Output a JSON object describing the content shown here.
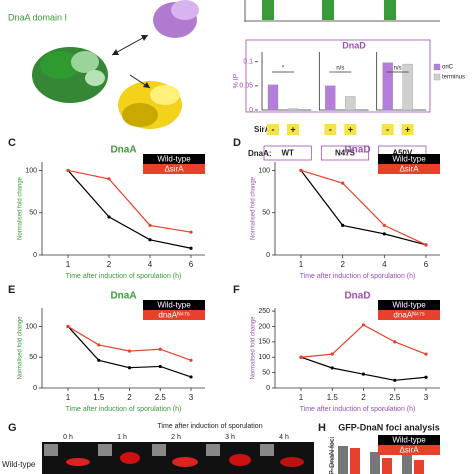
{
  "figure": {
    "structure_label": "DnaA domain I",
    "panels": [
      "C",
      "D",
      "E",
      "F",
      "G",
      "H"
    ],
    "microscopy": {
      "title": "Time after induction of sporulation",
      "times": [
        "0 h",
        "1 h",
        "2 h",
        "3 h",
        "4 h"
      ],
      "row": "Wild-type"
    }
  },
  "chart_data": [
    {
      "type": "bar",
      "title": "DnaD",
      "title_color": "#9b4fb0",
      "ylabel": "% IP",
      "categories": [
        "WT",
        "N47S",
        "A50V"
      ],
      "group_label": "DnaA:",
      "sira_label": "SirA",
      "sira_states": [
        "-",
        "+"
      ],
      "annotations": [
        "*",
        "n/s",
        "n/s"
      ],
      "series": [
        {
          "name": "oriC",
          "color": "#b57edc",
          "values": [
            0.052,
            0.05,
            0.098
          ]
        },
        {
          "name": "terminus",
          "color": "#d0d0d0",
          "values": [
            0.003,
            0.028,
            0.095
          ]
        }
      ],
      "ylim": [
        0,
        0.12
      ],
      "yticks": [
        0,
        0.05,
        0.1
      ],
      "legend": "right"
    },
    {
      "type": "line",
      "title": "DnaA",
      "title_color": "#3a9a3a",
      "ylabel": "Normalised fold change",
      "xlabel": "Time after induction of sporulation (h)",
      "categories": [
        "1",
        "2",
        "4",
        "6"
      ],
      "series": [
        {
          "name": "Wild-type",
          "color": "#000000",
          "values": [
            100,
            45,
            18,
            8
          ]
        },
        {
          "name": "ΔsirA",
          "color": "#e8402a",
          "values": [
            100,
            90,
            35,
            27
          ]
        }
      ],
      "ylim": [
        0,
        110
      ],
      "yticks": [
        0,
        50,
        100
      ],
      "legend": "upper right"
    },
    {
      "type": "line",
      "title": "DnaD",
      "title_color": "#9b4fb0",
      "ylabel": "Normalised fold change",
      "xlabel": "Time after induction of sporulation (h)",
      "categories": [
        "1",
        "2",
        "4",
        "6"
      ],
      "series": [
        {
          "name": "Wild-type",
          "color": "#000000",
          "values": [
            100,
            35,
            25,
            12
          ]
        },
        {
          "name": "ΔsirA",
          "color": "#e8402a",
          "values": [
            100,
            85,
            35,
            12
          ]
        }
      ],
      "ylim": [
        0,
        110
      ],
      "yticks": [
        0,
        50,
        100
      ],
      "legend": "upper right"
    },
    {
      "type": "line",
      "title": "DnaA",
      "title_color": "#3a9a3a",
      "ylabel": "Normalised fold change",
      "xlabel": "Time after induction of sporulation (h)",
      "categories": [
        "1",
        "1.5",
        "2",
        "2.5",
        "3"
      ],
      "series": [
        {
          "name": "Wild-type",
          "color": "#000000",
          "values": [
            100,
            45,
            33,
            35,
            18
          ]
        },
        {
          "name": "dnaAᴺ⁴⁷ˢ",
          "color": "#e8402a",
          "values": [
            100,
            70,
            60,
            63,
            45
          ]
        }
      ],
      "ylim": [
        0,
        130
      ],
      "yticks": [
        0,
        50,
        100
      ],
      "legend": "upper right"
    },
    {
      "type": "line",
      "title": "DnaD",
      "title_color": "#9b4fb0",
      "ylabel": "Normalised fold change",
      "xlabel": "Time after induction of sporulation (h)",
      "categories": [
        "1",
        "1.5",
        "2",
        "2.5",
        "3"
      ],
      "series": [
        {
          "name": "Wild-type",
          "color": "#000000",
          "values": [
            100,
            65,
            45,
            25,
            35
          ]
        },
        {
          "name": "dnaAᴺ⁴⁷ˢ",
          "color": "#e8402a",
          "values": [
            100,
            110,
            205,
            150,
            110
          ]
        }
      ],
      "ylim": [
        0,
        260
      ],
      "yticks": [
        0,
        50,
        100,
        150,
        200,
        250
      ],
      "legend": "upper right"
    },
    {
      "type": "legend-only",
      "title": "GFP-DnaN foci analysis",
      "ylabel": "P-DnaN foci",
      "series": [
        {
          "name": "Wild-type",
          "color": "#000000"
        },
        {
          "name": "ΔsirA",
          "color": "#e8402a"
        }
      ],
      "legend": "upper right"
    }
  ]
}
